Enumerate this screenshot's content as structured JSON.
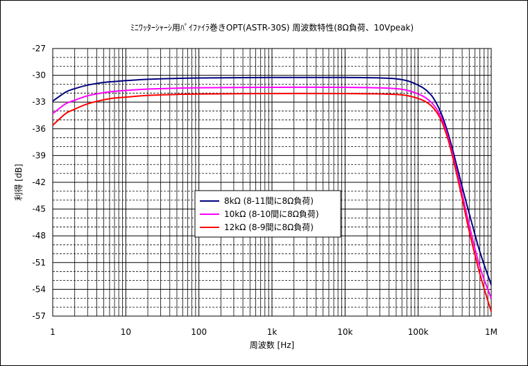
{
  "chart_data": {
    "type": "line",
    "title": "ﾐﾆﾜｯﾀｰｼｬｰｼ用ﾊﾟｲﾌｧｲﾗ巻きOPT(ASTR-30S) 周波数特性(8Ω負荷、10Vpeak)",
    "xlabel": "周波数 [Hz]",
    "ylabel": "利得 [dB]",
    "x_scale": "log",
    "xlim": [
      1,
      1000000
    ],
    "ylim": [
      -57,
      -27
    ],
    "x_ticks": [
      {
        "v": 1,
        "label": "1"
      },
      {
        "v": 10,
        "label": "10"
      },
      {
        "v": 100,
        "label": "100"
      },
      {
        "v": 1000,
        "label": "1k"
      },
      {
        "v": 10000,
        "label": "10k"
      },
      {
        "v": 100000,
        "label": "100k"
      },
      {
        "v": 1000000,
        "label": "1M"
      }
    ],
    "y_ticks": [
      -27,
      -30,
      -33,
      -36,
      -39,
      -42,
      -45,
      -48,
      -51,
      -54,
      -57
    ],
    "y_minor_step": 1,
    "grid": true,
    "legend_position": "center",
    "series": [
      {
        "name": "8kΩ (8-11間に8Ω負荷)",
        "color": "#000080",
        "x": [
          1,
          1.5,
          2,
          3,
          5,
          7,
          10,
          20,
          50,
          100,
          1000,
          10000,
          50000,
          100000,
          150000,
          200000,
          250000,
          300000,
          400000,
          500000,
          700000,
          1000000
        ],
        "y": [
          -32.9,
          -31.9,
          -31.5,
          -31.1,
          -30.8,
          -30.7,
          -30.6,
          -30.45,
          -30.35,
          -30.3,
          -30.25,
          -30.25,
          -30.4,
          -31.1,
          -32.2,
          -34.0,
          -36.2,
          -38.5,
          -42.5,
          -45.5,
          -49.8,
          -53.5
        ]
      },
      {
        "name": "10kΩ (8-10間に8Ω負荷)",
        "color": "#ff00ff",
        "x": [
          1,
          1.5,
          2,
          3,
          5,
          7,
          10,
          20,
          50,
          100,
          1000,
          10000,
          50000,
          100000,
          150000,
          200000,
          250000,
          300000,
          400000,
          500000,
          700000,
          1000000
        ],
        "y": [
          -34.3,
          -33.2,
          -32.8,
          -32.3,
          -31.95,
          -31.8,
          -31.7,
          -31.55,
          -31.45,
          -31.4,
          -31.35,
          -31.35,
          -31.5,
          -32.1,
          -33.0,
          -34.5,
          -36.6,
          -39.0,
          -43.3,
          -46.8,
          -51.5,
          -55.0
        ]
      },
      {
        "name": "12kΩ (8-9間に8Ω負荷)",
        "color": "#ff0000",
        "x": [
          1,
          1.5,
          2,
          3,
          5,
          7,
          10,
          20,
          50,
          100,
          1000,
          10000,
          50000,
          100000,
          150000,
          200000,
          250000,
          300000,
          400000,
          500000,
          700000,
          1000000
        ],
        "y": [
          -35.6,
          -34.3,
          -33.8,
          -33.2,
          -32.75,
          -32.55,
          -32.45,
          -32.25,
          -32.15,
          -32.1,
          -32.05,
          -32.05,
          -32.15,
          -32.6,
          -33.4,
          -34.8,
          -36.9,
          -39.3,
          -43.8,
          -47.5,
          -52.3,
          -56.5
        ]
      }
    ]
  }
}
